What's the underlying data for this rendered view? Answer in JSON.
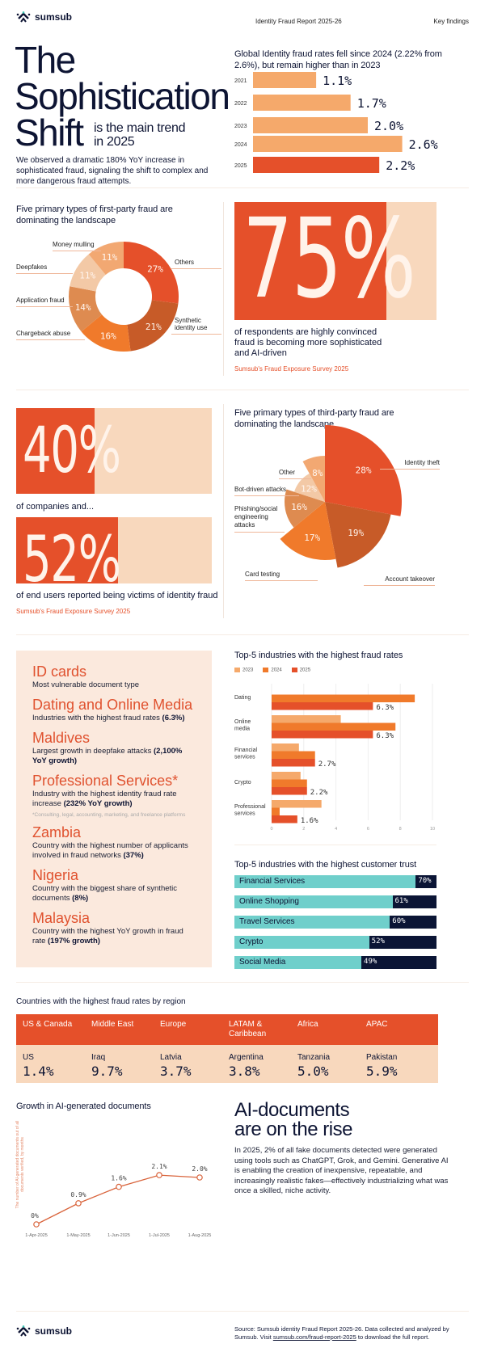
{
  "header": {
    "brand": "sumsub",
    "report": "Identity Fraud Report 2025-26",
    "section": "Key findings"
  },
  "hero": {
    "title_lines": [
      "The",
      "Sophistication",
      "Shift"
    ],
    "subtitle_line1": "is the main trend",
    "subtitle_line2": "in 2025",
    "body": "We observed a dramatic 180% YoY increase in sophisticated fraud, signaling the shift to complex and more dangerous fraud attempts."
  },
  "stats": {
    "respondents": {
      "value": "75%",
      "fraction": 0.75,
      "text": "of respondents are highly convinced fraud is becoming more sophisticated and AI-driven",
      "source": "Sumsub's Fraud Exposure Survey 2025"
    },
    "companies": {
      "value": "40%",
      "fraction": 0.4,
      "text": "of companies and..."
    },
    "end_users": {
      "value": "52%",
      "fraction": 0.52,
      "text": "of end users reported being victims of identity fraud",
      "source": "Sumsub's Fraud Exposure Survey 2025"
    }
  },
  "findings": [
    {
      "title": "ID cards",
      "text": "Most vulnerable document type",
      "bold": ""
    },
    {
      "title": "Dating and Online Media",
      "text": "Industries with the highest fraud rates ",
      "bold": "(6.3%)"
    },
    {
      "title": "Maldives",
      "text": "Largest growth in deepfake attacks ",
      "bold": "(2,100% YoY growth)"
    },
    {
      "title": "Professional Services*",
      "text": "Industry with the highest identity fraud rate increase ",
      "bold": "(232% YoY growth)",
      "note": "*Consulting, legal, accounting, marketing, and freelance platforms"
    },
    {
      "title": "Zambia",
      "text": "Country with the highest number of applicants involved in fraud networks ",
      "bold": "(37%)"
    },
    {
      "title": "Nigeria",
      "text": "Country with the biggest share of synthetic documents ",
      "bold": "(8%)"
    },
    {
      "title": "Malaysia",
      "text": "Country with the highest YoY growth in fraud rate ",
      "bold": "(197% growth)"
    }
  ],
  "regions": {
    "title": "Countries with the highest fraud rates by region",
    "items": [
      {
        "region": "US & Canada",
        "country": "US",
        "value": "1.4%"
      },
      {
        "region": "Middle East",
        "country": "Iraq",
        "value": "9.7%"
      },
      {
        "region": "Europe",
        "country": "Latvia",
        "value": "3.7%"
      },
      {
        "region": "LATAM & Caribbean",
        "country": "Argentina",
        "value": "3.8%"
      },
      {
        "region": "Africa",
        "country": "Tanzania",
        "value": "5.0%"
      },
      {
        "region": "APAC",
        "country": "Pakistan",
        "value": "5.9%"
      }
    ]
  },
  "ai_docs": {
    "heading_line1": "AI-documents",
    "heading_line2": "are on the rise",
    "body": "In 2025, 2% of all fake documents detected were generated using tools such as ChatGPT, Grok, and Gemini. Generative AI is enabling the creation of inexpensive, repeatable, and increasingly realistic fakes—effectively industrializing what was once a skilled, niche activity."
  },
  "footer": {
    "brand": "sumsub",
    "source_text": "Source: Sumsub identity Fraud Report 2025-26. Data collected and analyzed by Sumsub. Visit ",
    "link": "sumsub.com/fraud-report-2025",
    "source_tail": " to download the full report."
  },
  "colors": {
    "accent": "#e5502a",
    "peach": "#f8d8bd",
    "light_peach": "#fbe9dd",
    "navy": "#0d1433",
    "teal": "#6fcfcb",
    "dark_navy": "#0b1535"
  },
  "chart_data": [
    {
      "type": "bar",
      "orientation": "horizontal",
      "title": "Global Identity fraud rates fell since 2024 (2.22% from 2.6%), but remain higher than in 2023",
      "categories": [
        "2021",
        "2022",
        "2023",
        "2024",
        "2025"
      ],
      "values": [
        1.1,
        1.7,
        2.0,
        2.6,
        2.2
      ],
      "data_labels": [
        "1.1%",
        "1.7%",
        "2.0%",
        "2.6%",
        "2.2%"
      ],
      "colors": [
        "#f5a96b",
        "#f5a96b",
        "#f5a96b",
        "#f5a96b",
        "#e5502a"
      ]
    },
    {
      "type": "pie",
      "variant": "donut",
      "title": "Five primary types of first-party fraud are dominating the landscape",
      "categories": [
        "Others",
        "Synthetic identity use",
        "Chargeback abuse",
        "Application fraud",
        "Deepfakes",
        "Money mulling"
      ],
      "values": [
        27,
        21,
        16,
        14,
        11,
        11
      ],
      "data_labels": [
        "27%",
        "21%",
        "16%",
        "14%",
        "11%",
        "11%"
      ],
      "colors": [
        "#e5502a",
        "#c75b28",
        "#f07a2b",
        "#de8b50",
        "#f3c9a6",
        "#f2a872"
      ]
    },
    {
      "type": "pie",
      "variant": "polar",
      "title": "Five primary types of third-party fraud are dominating the landscape",
      "categories": [
        "Identity theft",
        "Account takeover",
        "Card testing",
        "Phishing/social engineering attacks",
        "Bot-driven attacks",
        "Other"
      ],
      "values": [
        28,
        19,
        17,
        16,
        12,
        8
      ],
      "data_labels": [
        "28%",
        "19%",
        "17%",
        "16%",
        "12%",
        "8%"
      ],
      "colors": [
        "#e5502a",
        "#c75b28",
        "#f07a2b",
        "#de8b50",
        "#f3c9a6",
        "#f2a872"
      ]
    },
    {
      "type": "bar",
      "orientation": "horizontal",
      "title": "Top-5 industries with the highest fraud rates",
      "categories": [
        "Dating",
        "Online media",
        "Financial services",
        "Crypto",
        "Professional services"
      ],
      "series": [
        {
          "name": "2023",
          "values": [
            0,
            4.3,
            1.7,
            1.8,
            3.1
          ],
          "color": "#f5a96b"
        },
        {
          "name": "2024",
          "values": [
            8.9,
            7.7,
            2.7,
            2.2,
            0.5
          ],
          "color": "#f07a2b"
        },
        {
          "name": "2025",
          "values": [
            6.3,
            6.3,
            2.7,
            2.2,
            1.6
          ],
          "color": "#e5502a"
        }
      ],
      "data_labels": [
        "6.3%",
        "6.3%",
        "2.7%",
        "2.2%",
        "1.6%"
      ],
      "xlim": [
        0,
        10
      ],
      "xticks": [
        "0",
        "2",
        "4",
        "6",
        "8",
        "10"
      ],
      "grid": true,
      "legend": "top-left"
    },
    {
      "type": "bar",
      "orientation": "horizontal",
      "title": "Top-5 industries with the highest customer trust",
      "categories": [
        "Financial Services",
        "Online Shopping",
        "Travel Services",
        "Crypto",
        "Social Media"
      ],
      "values": [
        70,
        61,
        60,
        52,
        49
      ],
      "data_labels": [
        "70%",
        "61%",
        "60%",
        "52%",
        "49%"
      ]
    },
    {
      "type": "line",
      "title": "Growth in AI-generated documents",
      "ylabel": "The number of AI-generated documents out of all documents verified, by months",
      "x": [
        "1-Apr-2025",
        "1-May-2025",
        "1-Jun-2025",
        "1-Jul-2025",
        "1-Aug-2025"
      ],
      "values": [
        0,
        0.9,
        1.6,
        2.1,
        2.0
      ],
      "data_labels": [
        "0%",
        "0.9%",
        "1.6%",
        "2.1%",
        "2.0%"
      ],
      "color": "#d9643c"
    }
  ]
}
